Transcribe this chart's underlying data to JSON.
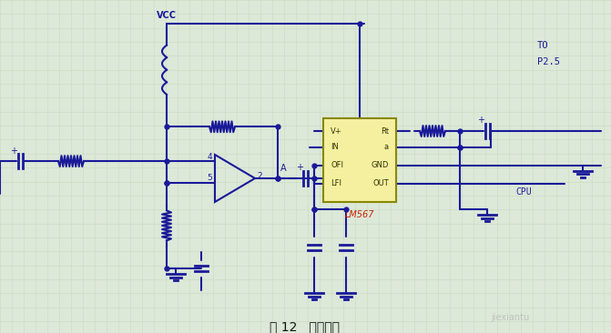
{
  "title": "图 12   铃流电路",
  "bg_color": "#dce8d8",
  "grid_color": "#c8dcc0",
  "line_color": "#1a1a99",
  "line_width": 1.5,
  "vcc_label": "VCC",
  "to_label": "TO",
  "p25_label": "P2.5",
  "cpu_label": "CPU",
  "lm567_label": "LM567",
  "lm567_fill": "#f5f0a0",
  "lm567_border": "#888800",
  "lm567_text_color": "#333300",
  "lm567_label_color": "#cc2200",
  "lm567_pins_left": [
    "V+",
    "IN",
    "OFI",
    "LFI"
  ],
  "lm567_pins_right": [
    "Rt",
    "a",
    "GND",
    "OUT"
  ],
  "a_label": "A",
  "watermark_text": "jiexiantu",
  "title_fontsize": 10,
  "figsize": [
    6.71,
    3.66
  ],
  "dpi": 100
}
